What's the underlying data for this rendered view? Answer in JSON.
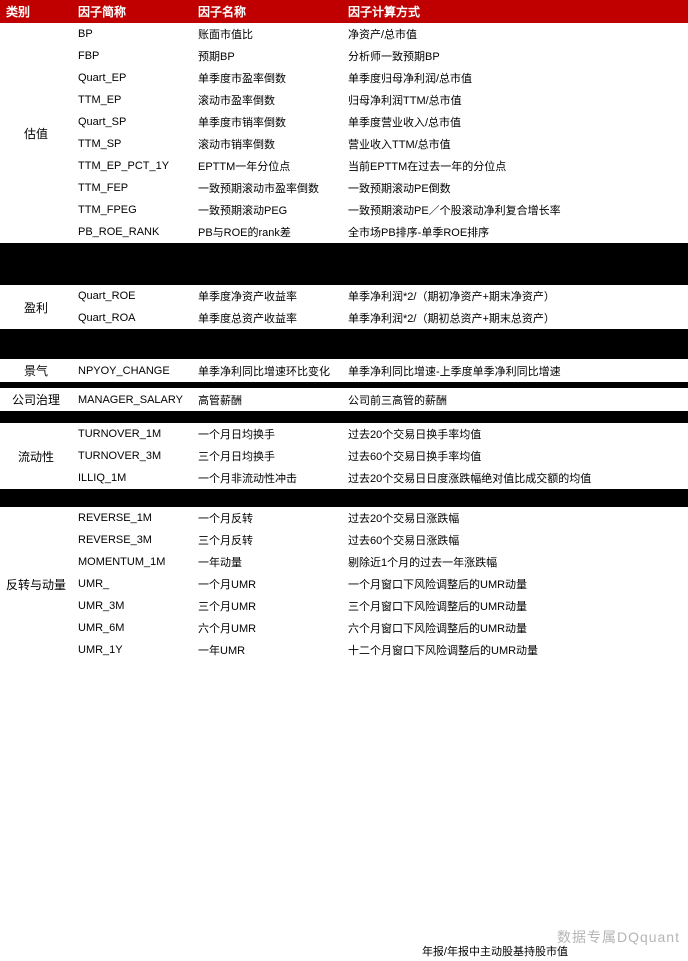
{
  "table": {
    "headers": [
      "类别",
      "因子简称",
      "因子名称",
      "因子计算方式"
    ],
    "colors": {
      "header_bg": "#c00000",
      "header_fg": "#ffffff",
      "row_white": "#ffffff",
      "row_black": "#000000"
    },
    "fontsize_header": 12,
    "fontsize_cell": 11,
    "rows": [
      {
        "cat": "估值",
        "catspan": 10,
        "abbr": "BP",
        "name": "账面市值比",
        "calc": "净资产/总市值",
        "bg": "white"
      },
      {
        "abbr": "FBP",
        "name": "预期BP",
        "calc": "分析师一致预期BP",
        "bg": "white"
      },
      {
        "abbr": "Quart_EP",
        "name": "单季度市盈率倒数",
        "calc": "单季度归母净利润/总市值",
        "bg": "white"
      },
      {
        "abbr": "TTM_EP",
        "name": "滚动市盈率倒数",
        "calc": "归母净利润TTM/总市值",
        "bg": "white"
      },
      {
        "abbr": "Quart_SP",
        "name": "单季度市销率倒数",
        "calc": "单季度营业收入/总市值",
        "bg": "white"
      },
      {
        "abbr": "TTM_SP",
        "name": "滚动市销率倒数",
        "calc": "营业收入TTM/总市值",
        "bg": "white"
      },
      {
        "abbr": "TTM_EP_PCT_1Y",
        "name": "EPTTM一年分位点",
        "calc": "当前EPTTM在过去一年的分位点",
        "bg": "white"
      },
      {
        "abbr": "TTM_FEP",
        "name": "一致预期滚动市盈率倒数",
        "calc": "一致预期滚动PE倒数",
        "bg": "white"
      },
      {
        "abbr": "TTM_FPEG",
        "name": "一致预期滚动PEG",
        "calc": "一致预期滚动PE／个股滚动净利复合增长率",
        "bg": "white"
      },
      {
        "abbr": "PB_ROE_RANK",
        "name": "PB与ROE的rank差",
        "calc": "全市场PB排序-单季ROE排序",
        "bg": "white"
      },
      {
        "cat": "",
        "catspan": 7,
        "abbr": "",
        "name": "",
        "calc": "",
        "bg": "black"
      },
      {
        "abbr": "",
        "name": "",
        "calc": "",
        "bg": "black"
      },
      {
        "abbr": "",
        "name": "",
        "calc": "",
        "bg": "black"
      },
      {
        "abbr": "",
        "name": "",
        "calc": "",
        "bg": "black"
      },
      {
        "abbr": "",
        "name": "",
        "calc": "",
        "bg": "black"
      },
      {
        "abbr": "",
        "name": "",
        "calc": "",
        "bg": "black"
      },
      {
        "abbr": "",
        "name": "",
        "calc": "",
        "bg": "black"
      },
      {
        "cat": "盈利",
        "catspan": 2,
        "abbr": "Quart_ROE",
        "name": "单季度净资产收益率",
        "calc": "单季净利润*2/（期初净资产+期末净资产）",
        "bg": "white"
      },
      {
        "abbr": "Quart_ROA",
        "name": "单季度总资产收益率",
        "calc": "单季净利润*2/（期初总资产+期末总资产）",
        "bg": "white"
      },
      {
        "cat": "",
        "catspan": 5,
        "abbr": "",
        "name": "",
        "calc": "",
        "bg": "black"
      },
      {
        "abbr": "",
        "name": "",
        "calc": "",
        "bg": "black"
      },
      {
        "abbr": "",
        "name": "",
        "calc": "",
        "bg": "black"
      },
      {
        "abbr": "",
        "name": "",
        "calc": "",
        "bg": "black"
      },
      {
        "abbr": "",
        "name": "",
        "calc": "",
        "bg": "black"
      },
      {
        "cat": "景气",
        "catspan": 1,
        "abbr": "NPYOY_CHANGE",
        "name": "单季净利同比增速环比变化",
        "calc": "单季净利同比增速-上季度单季净利同比增速",
        "bg": "white"
      },
      {
        "cat": "",
        "catspan": 1,
        "abbr": "",
        "name": "",
        "calc": "",
        "bg": "black"
      },
      {
        "cat": "公司治理",
        "catspan": 1,
        "abbr": "MANAGER_SALARY",
        "name": "高管薪酬",
        "calc": "公司前三高管的薪酬",
        "bg": "white"
      },
      {
        "cat": "",
        "catspan": 2,
        "abbr": "",
        "name": "",
        "calc": "",
        "bg": "black"
      },
      {
        "abbr": "",
        "name": "",
        "calc": "",
        "bg": "black"
      },
      {
        "cat": "流动性",
        "catspan": 3,
        "abbr": "TURNOVER_1M",
        "name": "一个月日均换手",
        "calc": "过去20个交易日换手率均值",
        "bg": "white"
      },
      {
        "abbr": "TURNOVER_3M",
        "name": "三个月日均换手",
        "calc": "过去60个交易日换手率均值",
        "bg": "white"
      },
      {
        "abbr": "ILLIQ_1M",
        "name": "一个月非流动性冲击",
        "calc": "过去20个交易日日度涨跌幅绝对值比成交额的均值",
        "bg": "white"
      },
      {
        "cat": "",
        "catspan": 3,
        "abbr": "",
        "name": "",
        "calc": "",
        "bg": "black"
      },
      {
        "abbr": "",
        "name": "",
        "calc": "",
        "bg": "black"
      },
      {
        "abbr": "",
        "name": "",
        "calc": "",
        "bg": "black"
      },
      {
        "cat": "反转与动量",
        "catspan": 7,
        "abbr": "REVERSE_1M",
        "name": "一个月反转",
        "calc": "过去20个交易日涨跌幅",
        "bg": "white"
      },
      {
        "abbr": "REVERSE_3M",
        "name": "三个月反转",
        "calc": "过去60个交易日涨跌幅",
        "bg": "white"
      },
      {
        "abbr": "MOMENTUM_1M",
        "name": "一年动量",
        "calc": "剔除近1个月的过去一年涨跌幅",
        "bg": "white"
      },
      {
        "abbr": "UMR_",
        "name": "一个月UMR",
        "calc": "一个月窗口下风险调整后的UMR动量",
        "bg": "white"
      },
      {
        "abbr": "UMR_3M",
        "name": "三个月UMR",
        "calc": "三个月窗口下风险调整后的UMR动量",
        "bg": "white"
      },
      {
        "abbr": "UMR_6M",
        "name": "六个月UMR",
        "calc": "六个月窗口下风险调整后的UMR动量",
        "bg": "white"
      },
      {
        "abbr": "UMR_1Y",
        "name": "一年UMR",
        "calc": "十二个月窗口下风险调整后的UMR动量",
        "bg": "white"
      }
    ]
  },
  "footnote": "年报/年报中主动股基持股市值",
  "watermark": "数据专属DQquant"
}
